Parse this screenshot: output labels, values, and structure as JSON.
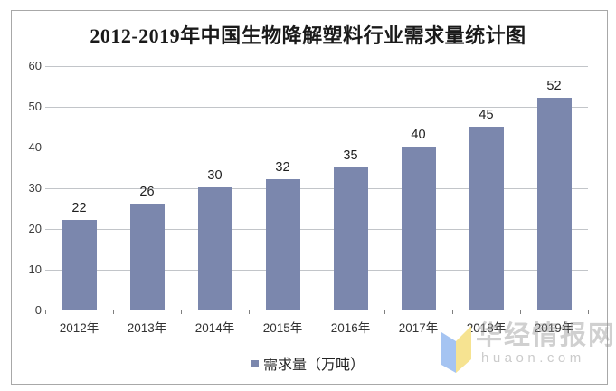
{
  "chart_data": {
    "type": "bar",
    "title": "2012-2019年中国生物降解塑料行业需求量统计图",
    "categories": [
      "2012年",
      "2013年",
      "2014年",
      "2015年",
      "2016年",
      "2017年",
      "2018年",
      "2019年"
    ],
    "values": [
      22,
      26,
      30,
      32,
      35,
      40,
      45,
      52
    ],
    "xlabel": "",
    "ylabel": "",
    "ylim": [
      0,
      60
    ],
    "yticks": [
      0,
      10,
      20,
      30,
      40,
      50,
      60
    ],
    "grid": "horizontal",
    "legend_label": "需求量（万吨）",
    "legend_position": "bottom",
    "value_labels": true,
    "bar_color": "#7b87ad"
  },
  "watermark": {
    "name": "华经情报网",
    "domain": "huaon.com",
    "logo_left_color": "#a5c4f2",
    "logo_right_color": "#f6e391"
  },
  "colors": {
    "bar": "#7b87ad",
    "gridline": "#c2c5c9",
    "axis_line": "#7f7f7f",
    "frame_border": "#a8a8a8",
    "text": "#333333"
  }
}
